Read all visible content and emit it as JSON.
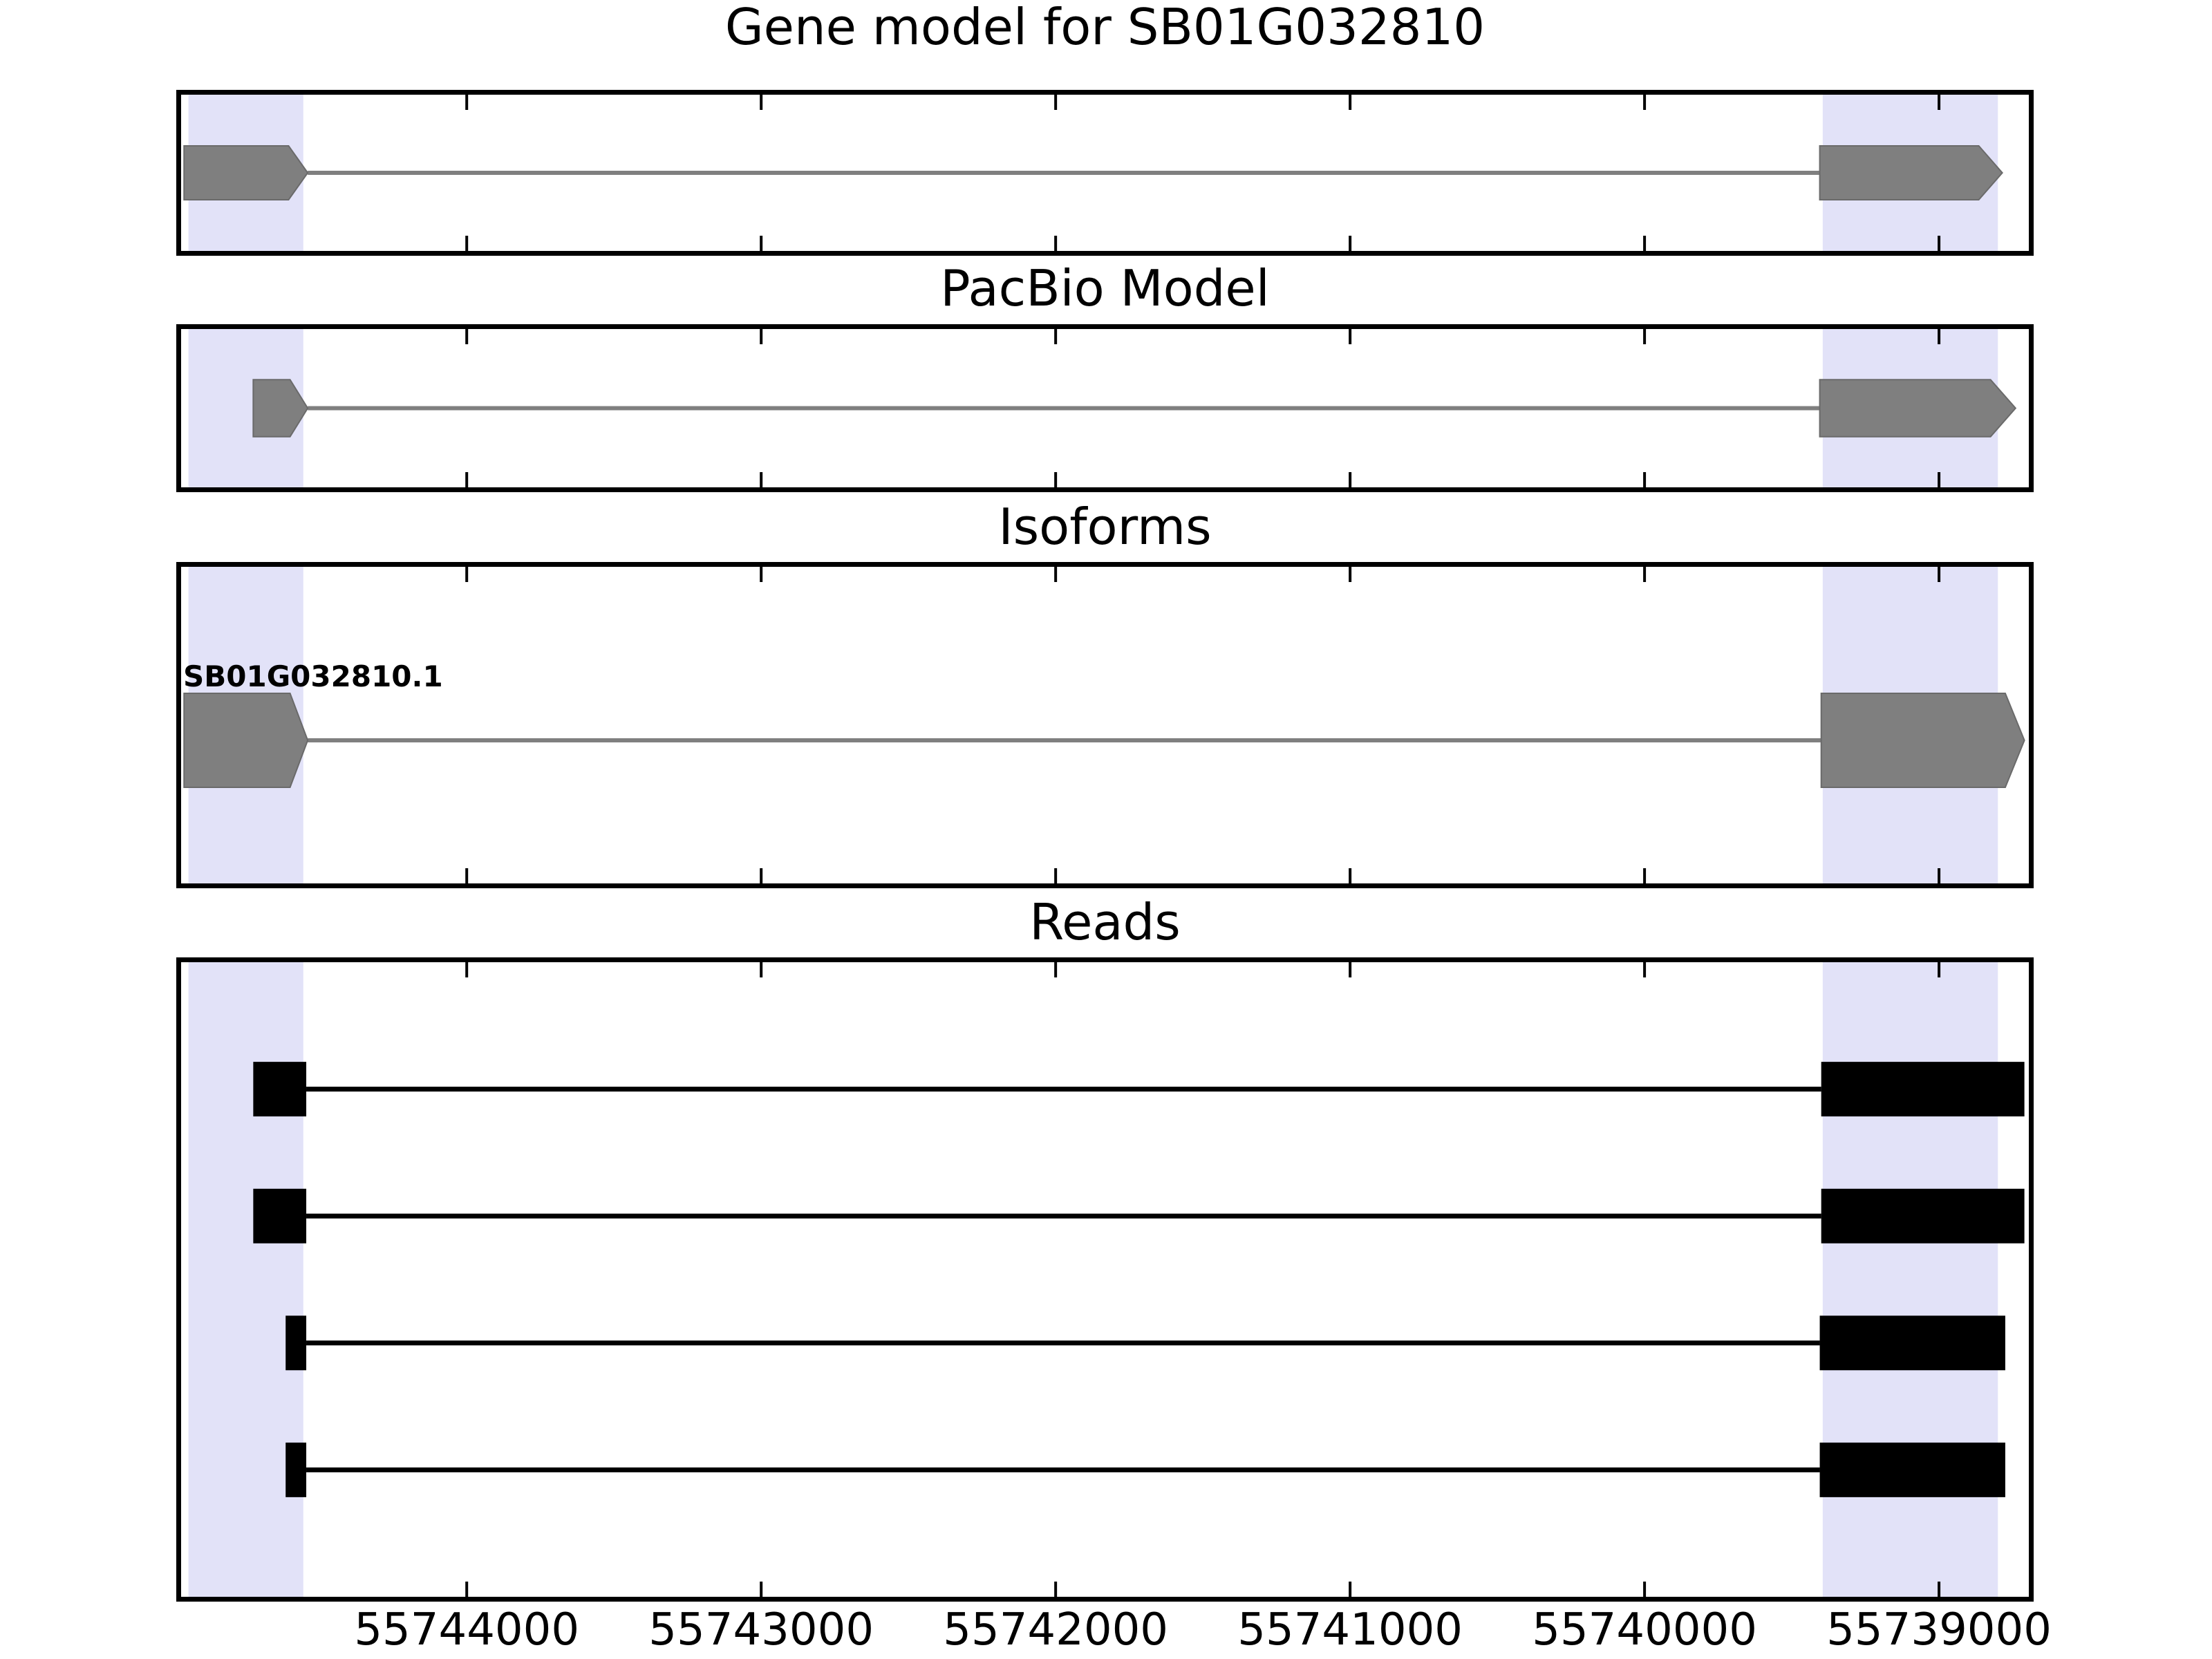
{
  "chart_data": {
    "type": "genome-tracks",
    "x_axis": {
      "tick_values": [
        55744000,
        55743000,
        55742000,
        55741000,
        55740000,
        55739000
      ],
      "tick_labels": [
        "55744000",
        "55743000",
        "55742000",
        "55741000",
        "55740000",
        "55739000"
      ],
      "range_left": 55744970,
      "range_right": 55738695,
      "reversed": true,
      "grid": false
    },
    "highlight_regions": [
      {
        "name": "first-exon-region",
        "start": 55744945,
        "end": 55744555
      },
      {
        "name": "last-exon-region",
        "start": 55739395,
        "end": 55738800
      }
    ],
    "tracks": [
      {
        "title": "Gene model for SB01G032810",
        "kind": "gene-model",
        "center_frac": 0.5,
        "exon_height_frac": 0.345,
        "exons": [
          {
            "start": 55744960,
            "taper": 55744605,
            "end": 55744540
          },
          {
            "start": 55739405,
            "taper": 55738865,
            "end": 55738785
          }
        ],
        "intron": {
          "start": 55744540,
          "end": 55739405
        }
      },
      {
        "title": "PacBio Model",
        "kind": "gene-model",
        "center_frac": 0.5,
        "exon_height_frac": 0.36,
        "exons": [
          {
            "start": 55744725,
            "taper": 55744600,
            "end": 55744540
          },
          {
            "start": 55739405,
            "taper": 55738825,
            "end": 55738740
          }
        ],
        "intron": {
          "start": 55744540,
          "end": 55739405
        }
      },
      {
        "title": "Isoforms",
        "kind": "isoform",
        "isoform_label": "SB01G032810.1",
        "center_frac": 0.548,
        "exon_height_frac": 0.297,
        "exons": [
          {
            "start": 55744960,
            "taper": 55744600,
            "end": 55744540
          },
          {
            "start": 55739400,
            "taper": 55738775,
            "end": 55738710
          }
        ],
        "intron": {
          "start": 55744540,
          "end": 55739400
        }
      },
      {
        "title": "Reads",
        "kind": "reads",
        "exon_height_frac": 0.086,
        "reads": [
          {
            "row": 0.2,
            "blocks": [
              {
                "start": 55744725,
                "end": 55744545
              },
              {
                "start": 55739400,
                "end": 55738710
              }
            ]
          },
          {
            "row": 0.4,
            "blocks": [
              {
                "start": 55744725,
                "end": 55744545
              },
              {
                "start": 55739400,
                "end": 55738710
              }
            ]
          },
          {
            "row": 0.6,
            "blocks": [
              {
                "start": 55744615,
                "end": 55744545
              },
              {
                "start": 55739405,
                "end": 55738775
              }
            ]
          },
          {
            "row": 0.8,
            "blocks": [
              {
                "start": 55744615,
                "end": 55744545
              },
              {
                "start": 55739405,
                "end": 55738775
              }
            ]
          }
        ]
      }
    ],
    "styles": {
      "exon_fill": "#7f7f7f",
      "exon_edge": "#6a6a6a",
      "intron_color": "#7f7f7f",
      "read_fill": "#000000",
      "band_color": "#e2e2f8",
      "tick_color": "#000000"
    }
  }
}
